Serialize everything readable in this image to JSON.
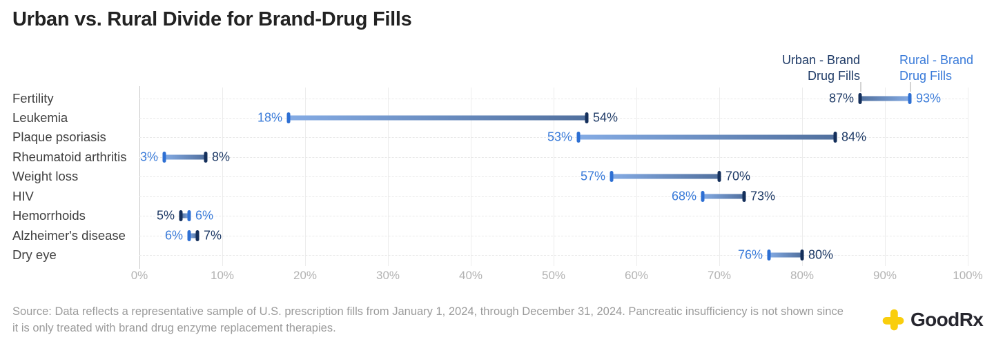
{
  "title": "Urban vs. Rural Divide for Brand-Drug Fills",
  "legend": {
    "urban": {
      "line1": "Urban - Brand",
      "line2": "Drug Fills"
    },
    "rural": {
      "line1": "Rural - Brand",
      "line2": "Drug Fills"
    }
  },
  "chart_data": {
    "type": "dumbbell",
    "title": "Urban vs. Rural Divide for Brand-Drug Fills",
    "categories": [
      "Fertility",
      "Leukemia",
      "Plaque psoriasis",
      "Rheumatoid arthritis",
      "Weight loss",
      "HIV",
      "Hemorrhoids",
      "Alzheimer's disease",
      "Dry eye"
    ],
    "series": [
      {
        "name": "Urban - Brand Drug Fills",
        "values": [
          87,
          54,
          84,
          8,
          70,
          73,
          5,
          7,
          80
        ]
      },
      {
        "name": "Rural - Brand Drug Fills",
        "values": [
          93,
          18,
          53,
          3,
          57,
          68,
          6,
          6,
          76
        ]
      }
    ],
    "value_suffix": "%",
    "xlim": [
      0,
      100
    ],
    "x_tick_labels": [
      "0%",
      "10%",
      "20%",
      "30%",
      "40%",
      "50%",
      "60%",
      "70%",
      "80%",
      "90%",
      "100%"
    ],
    "grid": "vertical solid per 10%, horizontal dashed per row",
    "legend_position": "top-right, labels point to Fertility markers"
  },
  "colors": {
    "urban_marker": "#142f5b",
    "rural_marker": "#2d6fd3",
    "urban_text": "#1e3a66",
    "rural_text": "#3a7bd9",
    "urban_bar_soft": "#51709e",
    "rural_bar_soft": "#84abe4",
    "grid_line": "#ececec",
    "axis_line": "#c9c9c9",
    "tick_text": "#b3b3b3",
    "logo_yellow": "#F9CE0D"
  },
  "source": {
    "text": "Source: Data reflects a representative sample of U.S. prescription fills from January 1, 2024, through December 31, 2024. Pancreatic insufficiency is not shown since it is only treated with brand drug enzyme replacement therapies."
  },
  "branding": {
    "logo_text": "GoodRx"
  }
}
